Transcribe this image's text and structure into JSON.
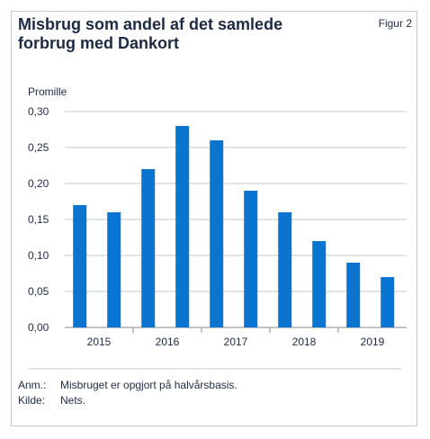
{
  "figure": {
    "title": "Misbrug som andel af det samlede forbrug med Dankort",
    "label": "Figur 2"
  },
  "notes": [
    {
      "key": "Anm.:",
      "text": "Misbruget er opgjort på halvårsbasis."
    },
    {
      "key": "Kilde:",
      "text": "Nets."
    }
  ],
  "chart_data": {
    "type": "bar",
    "title": "Misbrug som andel af det samlede forbrug med Dankort",
    "ylabel": "Promille",
    "xlabel": "",
    "ylim": [
      0,
      0.3
    ],
    "y_ticks": [
      "0,00",
      "0,05",
      "0,10",
      "0,15",
      "0,20",
      "0,25",
      "0,30"
    ],
    "x_tick_labels": [
      "2015",
      "2016",
      "2017",
      "2018",
      "2019"
    ],
    "categories": [
      "2015 H1",
      "2015 H2",
      "2016 H1",
      "2016 H2",
      "2017 H1",
      "2017 H2",
      "2018 H1",
      "2018 H2",
      "2019 H1",
      "2019 H2"
    ],
    "values": [
      0.17,
      0.16,
      0.22,
      0.28,
      0.26,
      0.19,
      0.16,
      0.12,
      0.09,
      0.07
    ],
    "bar_color": "#0a74cf",
    "grid": true
  }
}
